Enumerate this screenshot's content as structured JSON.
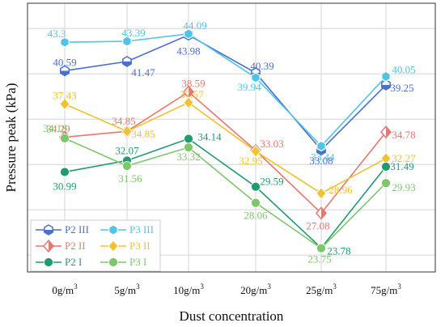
{
  "chart_data": {
    "type": "line",
    "title": "",
    "xlabel": "Dust concentration",
    "ylabel": "Pressure peak (kPa)",
    "ylim": [
      21.5,
      47
    ],
    "grid": true,
    "legend_position": "bottom-left",
    "categories": [
      {
        "base": "0g/m",
        "sup": "3"
      },
      {
        "base": "5g/m",
        "sup": "3"
      },
      {
        "base": "10g/m",
        "sup": "3"
      },
      {
        "base": "20g/m",
        "sup": "3"
      },
      {
        "base": "25g/m",
        "sup": "3"
      },
      {
        "base": "75g/m",
        "sup": "3"
      }
    ],
    "series": [
      {
        "name": "P2 III",
        "color": "#4a6fcf",
        "marker": "hexagon-half",
        "values": [
          40.59,
          41.47,
          43.98,
          40.39,
          33.08,
          39.25
        ],
        "labels": [
          "40.59",
          "41.47",
          "43.98",
          "40.39",
          "33.08",
          "39.25"
        ]
      },
      {
        "name": "P3 III",
        "color": "#4fc4e8",
        "marker": "hexagon",
        "values": [
          43.3,
          43.39,
          44.09,
          39.94,
          33.44,
          40.05
        ],
        "labels": [
          "43.3",
          "43.39",
          "44.09",
          "39.94",
          "33.44",
          "40.05"
        ]
      },
      {
        "name": "P2 II",
        "color": "#e8776f",
        "marker": "diamond-half",
        "values": [
          34.29,
          34.85,
          38.59,
          33.03,
          27.08,
          34.78
        ],
        "labels": [
          "34.29",
          "34.85",
          "38.59",
          "33.03",
          "27.08",
          "34.78"
        ]
      },
      {
        "name": "P3 II",
        "color": "#f2c12e",
        "marker": "diamond",
        "values": [
          37.43,
          34.85,
          37.57,
          32.95,
          28.96,
          32.27
        ],
        "labels": [
          "37.43",
          "34.85",
          "37.57",
          "32.95",
          "28.96",
          "32.27"
        ]
      },
      {
        "name": "P2 I",
        "color": "#1f9b6c",
        "marker": "circle",
        "values": [
          30.99,
          32.07,
          34.14,
          29.59,
          23.78,
          31.49
        ],
        "labels": [
          "30.99",
          "32.07",
          "34.14",
          "29.59",
          "23.78",
          "31.49"
        ]
      },
      {
        "name": "P3 I",
        "color": "#7cc76a",
        "marker": "circle",
        "values": [
          34.18,
          31.56,
          33.32,
          28.06,
          23.75,
          29.93
        ],
        "labels": [
          "34.18",
          "31.56",
          "33.32",
          "28.06",
          "23.75",
          "29.93"
        ]
      }
    ]
  }
}
